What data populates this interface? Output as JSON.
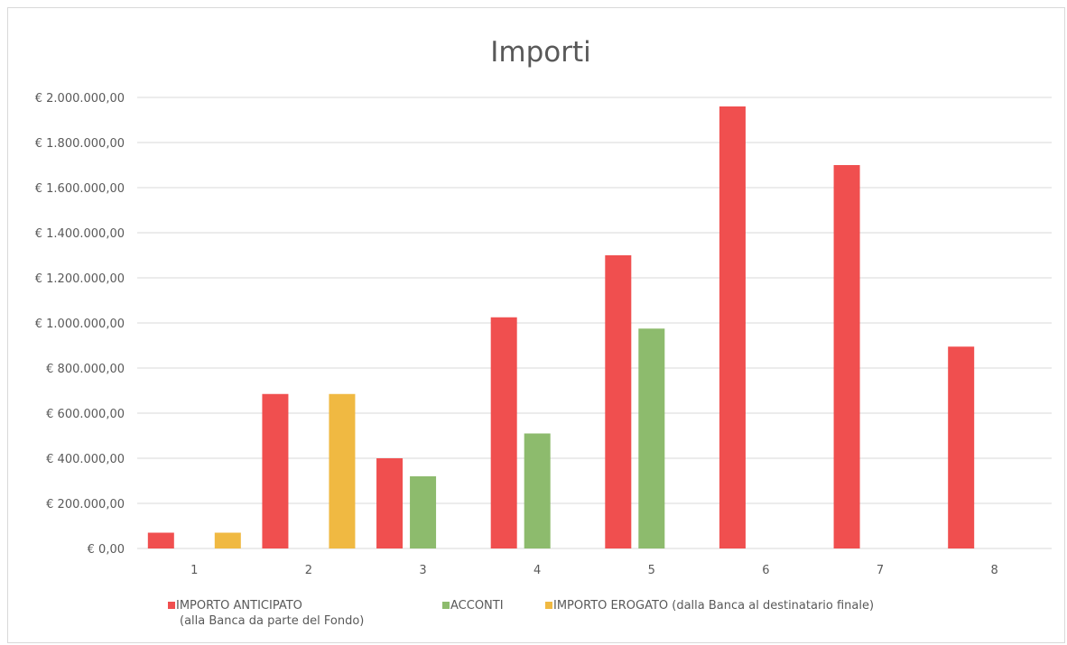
{
  "chart_data": {
    "type": "bar",
    "title": "Importi",
    "categories": [
      "1",
      "2",
      "3",
      "4",
      "5",
      "6",
      "7",
      "8"
    ],
    "y_tick_labels": [
      "€ 0,00",
      "€ 200.000,00",
      "€ 400.000,00",
      "€ 600.000,00",
      "€ 800.000,00",
      "€ 1.000.000,00",
      "€ 1.200.000,00",
      "€ 1.400.000,00",
      "€ 1.600.000,00",
      "€ 1.800.000,00",
      "€ 2.000.000,00"
    ],
    "ylim": [
      0,
      2000000
    ],
    "y_tick_step": 200000,
    "grid": true,
    "legend_position": "bottom",
    "series": [
      {
        "name": "IMPORTO ANTICIPATO (alla Banca da parte del Fondo)",
        "legend_line1": "IMPORTO ANTICIPATO",
        "legend_line2": "(alla Banca da parte del Fondo)",
        "color": "#f04f4f",
        "values": [
          70000,
          685000,
          400000,
          1025000,
          1300000,
          1960000,
          1700000,
          895000
        ]
      },
      {
        "name": "ACCONTI",
        "legend_line1": "ACCONTI",
        "color": "#8dbb6d",
        "values": [
          0,
          0,
          320000,
          510000,
          975000,
          0,
          0,
          0
        ]
      },
      {
        "name": "IMPORTO EROGATO (dalla Banca al destinatario finale)",
        "legend_line1": "IMPORTO EROGATO (dalla Banca al destinatario finale)",
        "color": "#f0b942",
        "values": [
          70000,
          685000,
          0,
          0,
          0,
          0,
          0,
          0
        ]
      }
    ]
  }
}
